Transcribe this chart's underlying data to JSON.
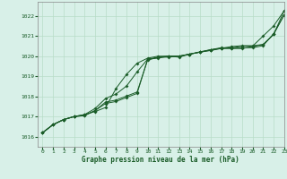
{
  "xlabel": "Graphe pression niveau de la mer (hPa)",
  "bg_color": "#d8f0e8",
  "grid_color": "#b8dcc8",
  "line_color": "#1a5c28",
  "xlim": [
    -0.5,
    23
  ],
  "ylim": [
    1015.5,
    1022.7
  ],
  "xticks": [
    0,
    1,
    2,
    3,
    4,
    5,
    6,
    7,
    8,
    9,
    10,
    11,
    12,
    13,
    14,
    15,
    16,
    17,
    18,
    19,
    20,
    21,
    22,
    23
  ],
  "yticks": [
    1016,
    1017,
    1018,
    1019,
    1020,
    1021,
    1022
  ],
  "line1_x": [
    0,
    1,
    2,
    3,
    4,
    5,
    6,
    7,
    8,
    9,
    10,
    11,
    12,
    13,
    14,
    15,
    16,
    17,
    18,
    19,
    20,
    21,
    22,
    23
  ],
  "line1_y": [
    1016.2,
    1016.6,
    1016.85,
    1017.0,
    1017.1,
    1017.25,
    1017.45,
    1018.4,
    1019.1,
    1019.65,
    1019.9,
    1020.0,
    1020.0,
    1019.95,
    1020.1,
    1020.2,
    1020.3,
    1020.4,
    1020.4,
    1020.5,
    1020.5,
    1021.0,
    1021.5,
    1022.25
  ],
  "line2_x": [
    0,
    1,
    2,
    3,
    4,
    5,
    6,
    7,
    8,
    9,
    10,
    11,
    12,
    13,
    14,
    15,
    16,
    17,
    18,
    19,
    20,
    21,
    22,
    23
  ],
  "line2_y": [
    1016.2,
    1016.6,
    1016.85,
    1017.0,
    1017.05,
    1017.3,
    1017.65,
    1017.75,
    1017.95,
    1018.15,
    1019.85,
    1019.9,
    1020.0,
    1020.0,
    1020.1,
    1020.2,
    1020.28,
    1020.38,
    1020.38,
    1020.38,
    1020.48,
    1020.58,
    1021.08,
    1022.05
  ],
  "line3_x": [
    0,
    1,
    2,
    3,
    4,
    5,
    6,
    7,
    8,
    9,
    10,
    11,
    12,
    13,
    14,
    15,
    16,
    17,
    18,
    19,
    20,
    21,
    22,
    23
  ],
  "line3_y": [
    1016.2,
    1016.6,
    1016.85,
    1017.0,
    1017.05,
    1017.3,
    1017.72,
    1017.82,
    1018.02,
    1018.22,
    1019.8,
    1019.95,
    1020.0,
    1020.0,
    1020.1,
    1020.2,
    1020.32,
    1020.42,
    1020.42,
    1020.42,
    1020.42,
    1020.52,
    1021.12,
    1022.05
  ],
  "line4_x": [
    0,
    1,
    2,
    3,
    4,
    5,
    6,
    7,
    8,
    9,
    10,
    11,
    12,
    13,
    14,
    15,
    16,
    17,
    18,
    19,
    20,
    21,
    22,
    23
  ],
  "line4_y": [
    1016.2,
    1016.6,
    1016.85,
    1017.0,
    1017.1,
    1017.4,
    1017.9,
    1018.12,
    1018.52,
    1019.22,
    1019.85,
    1019.95,
    1019.95,
    1020.0,
    1020.1,
    1020.22,
    1020.32,
    1020.38,
    1020.48,
    1020.52,
    1020.52,
    1020.58,
    1021.08,
    1022.25
  ]
}
